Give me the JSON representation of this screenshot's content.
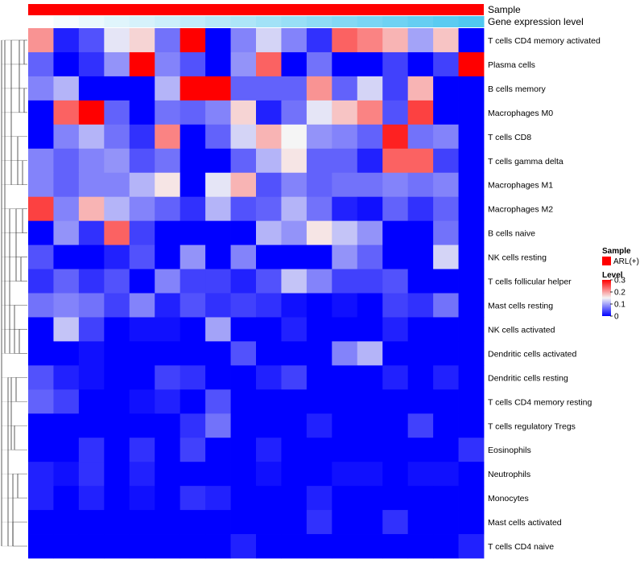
{
  "chart_data": {
    "type": "heatmap",
    "title": "",
    "row_labels": [
      "T cells CD4 memory activated",
      "Plasma cells",
      "B cells memory",
      "Macrophages M0",
      "T cells CD8",
      "T cells gamma delta",
      "Macrophages M1",
      "Macrophages M2",
      "B cells naive",
      "NK cells resting",
      "T cells follicular helper",
      "Mast cells resting",
      "NK cells activated",
      "Dendritic cells activated",
      "Dendritic cells resting",
      "T cells CD4 memory resting",
      "T cells regulatory  Tregs",
      "Eosinophils",
      "Neutrophils",
      "Monocytes",
      "Mast cells activated",
      "T cells CD4 naive"
    ],
    "column_count": 18,
    "values": [
      [
        0.21,
        0.02,
        0.05,
        0.14,
        0.17,
        0.07,
        0.3,
        0.0,
        0.08,
        0.13,
        0.08,
        0.03,
        0.24,
        0.22,
        0.19,
        0.1,
        0.18,
        0.0
      ],
      [
        0.06,
        0.0,
        0.03,
        0.09,
        0.3,
        0.08,
        0.05,
        0.0,
        0.09,
        0.24,
        0.0,
        0.07,
        0.0,
        0.0,
        0.04,
        0.0,
        0.04,
        0.3
      ],
      [
        0.08,
        0.11,
        0.0,
        0.0,
        0.0,
        0.11,
        0.3,
        0.3,
        0.06,
        0.06,
        0.06,
        0.21,
        0.06,
        0.13,
        0.04,
        0.19,
        0.0,
        0.0
      ],
      [
        0.0,
        0.24,
        0.3,
        0.06,
        0.0,
        0.07,
        0.06,
        0.08,
        0.17,
        0.02,
        0.07,
        0.14,
        0.18,
        0.22,
        0.05,
        0.26,
        0.0,
        0.0
      ],
      [
        0.0,
        0.08,
        0.11,
        0.07,
        0.03,
        0.22,
        0.0,
        0.06,
        0.13,
        0.19,
        0.15,
        0.09,
        0.08,
        0.06,
        0.28,
        0.07,
        0.08,
        0.0
      ],
      [
        0.08,
        0.06,
        0.08,
        0.09,
        0.05,
        0.07,
        0.0,
        0.0,
        0.06,
        0.11,
        0.16,
        0.06,
        0.06,
        0.02,
        0.24,
        0.24,
        0.04,
        0.0
      ],
      [
        0.08,
        0.06,
        0.08,
        0.08,
        0.11,
        0.16,
        0.0,
        0.14,
        0.19,
        0.05,
        0.08,
        0.06,
        0.07,
        0.07,
        0.08,
        0.07,
        0.08,
        0.0
      ],
      [
        0.26,
        0.08,
        0.19,
        0.11,
        0.08,
        0.06,
        0.03,
        0.11,
        0.05,
        0.06,
        0.11,
        0.07,
        0.02,
        0.01,
        0.06,
        0.03,
        0.06,
        0.0
      ],
      [
        0.0,
        0.09,
        0.03,
        0.24,
        0.04,
        0.0,
        0.0,
        0.0,
        0.0,
        0.11,
        0.09,
        0.16,
        0.12,
        0.09,
        0.0,
        0.0,
        0.07,
        0.0
      ],
      [
        0.05,
        0.0,
        0.0,
        0.02,
        0.05,
        0.0,
        0.09,
        0.0,
        0.08,
        0.0,
        0.0,
        0.0,
        0.09,
        0.06,
        0.0,
        0.0,
        0.13,
        0.0
      ],
      [
        0.03,
        0.06,
        0.03,
        0.05,
        0.0,
        0.08,
        0.04,
        0.04,
        0.02,
        0.05,
        0.12,
        0.08,
        0.04,
        0.04,
        0.05,
        0.0,
        0.0,
        0.0
      ],
      [
        0.07,
        0.08,
        0.07,
        0.04,
        0.08,
        0.02,
        0.05,
        0.03,
        0.04,
        0.03,
        0.01,
        0.0,
        0.01,
        0.0,
        0.04,
        0.03,
        0.07,
        0.0
      ],
      [
        0.0,
        0.12,
        0.04,
        0.0,
        0.01,
        0.01,
        0.0,
        0.1,
        0.0,
        0.0,
        0.02,
        0.0,
        0.0,
        0.0,
        0.02,
        0.0,
        0.0,
        0.0
      ],
      [
        0.0,
        0.0,
        0.01,
        0.0,
        0.0,
        0.0,
        0.0,
        0.0,
        0.05,
        0.0,
        0.0,
        0.0,
        0.08,
        0.11,
        0.0,
        0.0,
        0.0,
        0.0
      ],
      [
        0.05,
        0.02,
        0.01,
        0.0,
        0.0,
        0.04,
        0.03,
        0.0,
        0.0,
        0.02,
        0.04,
        0.0,
        0.0,
        0.0,
        0.02,
        0.0,
        0.02,
        0.0
      ],
      [
        0.06,
        0.04,
        0.0,
        0.0,
        0.01,
        0.02,
        0.0,
        0.05,
        0.0,
        0.0,
        0.0,
        0.0,
        0.0,
        0.0,
        0.0,
        0.0,
        0.0,
        0.0
      ],
      [
        0.0,
        0.0,
        0.0,
        0.0,
        0.0,
        0.0,
        0.03,
        0.07,
        0.0,
        0.0,
        0.0,
        0.02,
        0.0,
        0.0,
        0.0,
        0.04,
        0.0,
        0.0
      ],
      [
        0.0,
        0.0,
        0.03,
        0.0,
        0.03,
        0.0,
        0.04,
        0.0,
        0.0,
        0.02,
        0.0,
        0.0,
        0.0,
        0.0,
        0.0,
        0.0,
        0.0,
        0.03
      ],
      [
        0.02,
        0.01,
        0.03,
        0.0,
        0.02,
        0.0,
        0.0,
        0.0,
        0.0,
        0.01,
        0.0,
        0.0,
        0.01,
        0.01,
        0.0,
        0.01,
        0.01,
        0.0
      ],
      [
        0.02,
        0.0,
        0.02,
        0.0,
        0.01,
        0.0,
        0.03,
        0.02,
        0.0,
        0.0,
        0.0,
        0.02,
        0.0,
        0.0,
        0.0,
        0.0,
        0.0,
        0.0
      ],
      [
        0.0,
        0.0,
        0.0,
        0.0,
        0.0,
        0.0,
        0.0,
        0.0,
        0.0,
        0.0,
        0.0,
        0.03,
        0.0,
        0.0,
        0.03,
        0.0,
        0.0,
        0.0
      ],
      [
        0.0,
        0.0,
        0.0,
        0.0,
        0.0,
        0.0,
        0.0,
        0.0,
        0.02,
        0.0,
        0.0,
        0.0,
        0.0,
        0.0,
        0.0,
        0.0,
        0.0,
        0.02
      ]
    ],
    "color_scale": {
      "min": 0,
      "mid": 0.15,
      "max": 0.3,
      "low_color": "#0000ff",
      "mid_color": "#f5f5f5",
      "high_color": "#ff0000"
    },
    "annotation_tracks": [
      {
        "label": "Sample",
        "type": "categorical",
        "color": "#ff0000"
      },
      {
        "label": "Gene expression level",
        "type": "gradient",
        "start_color": "#ffffff",
        "end_color": "#50c8f0"
      }
    ],
    "legend": {
      "position": "right",
      "sample_title": "Sample",
      "sample_entry": "ARL(+)",
      "sample_color": "#ff0000",
      "level_title": "Level",
      "level_ticks": [
        {
          "value": 0.3,
          "label": "0.3"
        },
        {
          "value": 0.2,
          "label": "0.2"
        },
        {
          "value": 0.1,
          "label": "0.1"
        },
        {
          "value": 0,
          "label": "0"
        }
      ]
    },
    "row_dendrogram": true
  }
}
